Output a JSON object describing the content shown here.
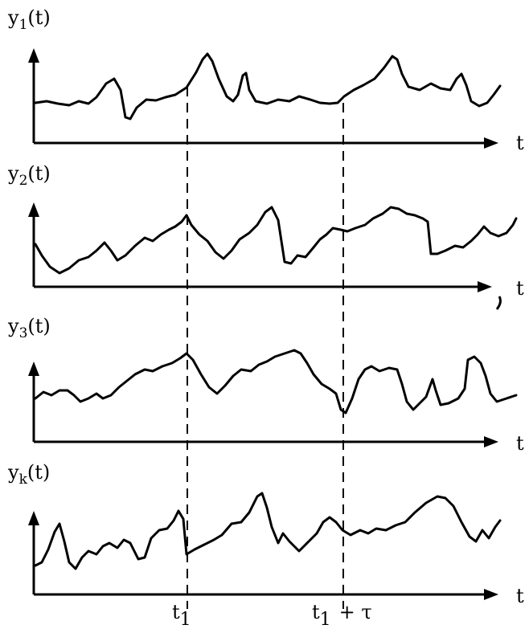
{
  "panels": [
    {
      "ylabel": "y",
      "sub": "1",
      "paren": "(t)",
      "tlabel": "t"
    },
    {
      "ylabel": "y",
      "sub": "2",
      "paren": "(t)",
      "tlabel": "t"
    },
    {
      "ylabel": "y",
      "sub": "3",
      "paren": "(t)",
      "tlabel": "t"
    },
    {
      "ylabel": "y",
      "sub": "k",
      "paren": "(t)",
      "tlabel": "t"
    }
  ],
  "markers": {
    "t1": {
      "base": "t",
      "sub": "1"
    },
    "t1_tau": {
      "base": "t",
      "sub": "1",
      "suffix": "+ τ"
    }
  }
}
